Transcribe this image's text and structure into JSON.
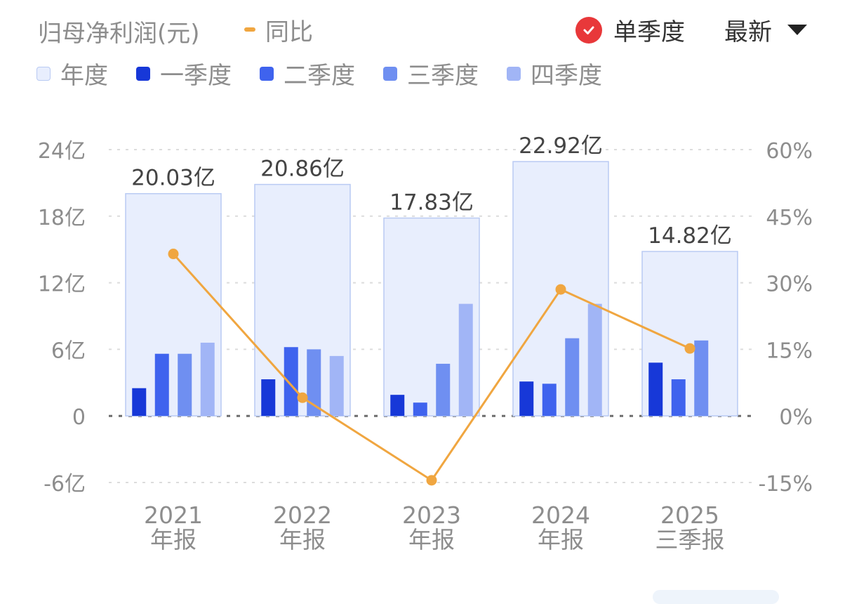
{
  "header": {
    "metric_title": "归母净利润(元)",
    "yoy_label": "同比",
    "single_quarter_label": "单季度",
    "latest_label": "最新"
  },
  "colors": {
    "annual_fill": "#e8eefd",
    "annual_stroke": "#b9caf3",
    "q1": "#1738d8",
    "q2": "#3f63ee",
    "q3": "#6f8ff1",
    "q4": "#a1b5f6",
    "yoy_line": "#f0a640",
    "accent_red": "#e8383a"
  },
  "icons": {
    "check": "check-icon",
    "dropdown": "caret-down-icon"
  },
  "chart_data": {
    "type": "bar",
    "categories": [
      "2021 年报",
      "2022 年报",
      "2023 年报",
      "2024 年报",
      "2025 三季报"
    ],
    "category_lines": [
      [
        "2021",
        "年报"
      ],
      [
        "2022",
        "年报"
      ],
      [
        "2023",
        "年报"
      ],
      [
        "2024",
        "年报"
      ],
      [
        "2025",
        "三季报"
      ]
    ],
    "legend": [
      "年度",
      "一季度",
      "二季度",
      "三季度",
      "四季度"
    ],
    "series": [
      {
        "name": "年度",
        "key": "annual",
        "values": [
          20.03,
          20.86,
          17.83,
          22.92,
          14.82
        ]
      },
      {
        "name": "一季度",
        "key": "q1",
        "values": [
          2.5,
          3.3,
          1.9,
          3.1,
          4.8
        ]
      },
      {
        "name": "二季度",
        "key": "q2",
        "values": [
          5.6,
          6.2,
          1.2,
          2.9,
          3.3
        ]
      },
      {
        "name": "三季度",
        "key": "q3",
        "values": [
          5.6,
          6.0,
          4.7,
          7.0,
          6.8
        ]
      },
      {
        "name": "四季度",
        "key": "q4",
        "values": [
          6.6,
          5.4,
          10.1,
          10.1,
          null
        ]
      },
      {
        "name": "同比",
        "key": "yoy",
        "axis": "right",
        "values": [
          36.5,
          4.1,
          -14.5,
          28.5,
          15.2
        ]
      }
    ],
    "data_labels": [
      "20.03亿",
      "20.86亿",
      "17.83亿",
      "22.92亿",
      "14.82亿"
    ],
    "y_left": {
      "ticks": [
        -6,
        0,
        6,
        12,
        18,
        24
      ],
      "tick_labels": [
        "-6亿",
        "0",
        "6亿",
        "12亿",
        "18亿",
        "24亿"
      ],
      "range": [
        -6,
        24
      ]
    },
    "y_right": {
      "ticks": [
        -15,
        0,
        15,
        30,
        45,
        60
      ],
      "tick_labels": [
        "-15%",
        "0%",
        "15%",
        "30%",
        "45%",
        "60%"
      ],
      "range": [
        -15,
        60
      ]
    },
    "grid": true,
    "legend_position": "top-left"
  }
}
